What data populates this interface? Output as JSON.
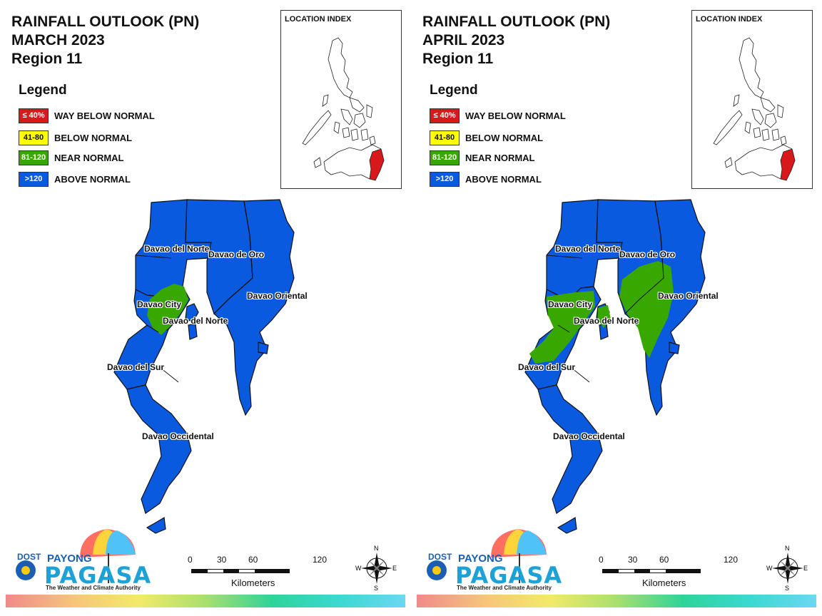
{
  "panels": [
    {
      "title_line1": "RAINFALL OUTLOOK (PN)",
      "title_line2": "MARCH 2023",
      "title_line3": "Region 11",
      "near_normal_zones": [
        "davao-city"
      ],
      "provinces": {
        "davao_del_norte_top": "Davao del Norte",
        "davao_de_oro": "Davao de Oro",
        "davao_oriental": "Davao Oriental",
        "davao_city": "Davao City",
        "davao_del_norte_lower": "Davao del Norte",
        "davao_del_sur": "Davao del Sur",
        "davao_occidental": "Davao Occidental"
      }
    },
    {
      "title_line1": "RAINFALL OUTLOOK (PN)",
      "title_line2": "APRIL 2023",
      "title_line3": "Region 11",
      "near_normal_zones": [
        "west",
        "east"
      ],
      "provinces": {
        "davao_del_norte_top": "Davao del Norte",
        "davao_de_oro": "Davao de Oro",
        "davao_oriental": "Davao Oriental",
        "davao_city": "Davao City",
        "davao_del_norte_lower": "Davao del Norte",
        "davao_del_sur": "Davao del Sur",
        "davao_occidental": "Davao Occidental"
      }
    }
  ],
  "legend": {
    "title": "Legend",
    "items": [
      {
        "swatch": "≤ 40%",
        "label": "WAY BELOW NORMAL",
        "color": "#d7191c",
        "text_color": "#ffffff"
      },
      {
        "swatch": "41-80",
        "label": "BELOW NORMAL",
        "color": "#ffff00",
        "text_color": "#111111"
      },
      {
        "swatch": "81-120",
        "label": "NEAR NORMAL",
        "color": "#38a800",
        "text_color": "#ffffff"
      },
      {
        "swatch": ">120",
        "label": "ABOVE NORMAL",
        "color": "#0a5ae0",
        "text_color": "#ffffff"
      }
    ]
  },
  "inset": {
    "title": "LOCATION INDEX",
    "highlight_color": "#d7191c"
  },
  "scale": {
    "ticks": [
      "0",
      "30",
      "60",
      "120"
    ],
    "unit": "Kilometers"
  },
  "compass": {
    "n": "N",
    "s": "S",
    "e": "E",
    "w": "W"
  },
  "logo": {
    "dost": "DOST",
    "payong": "PAYONG",
    "pagasa": "PAGASA",
    "tagline": "The Weather and Climate Authority"
  },
  "colors": {
    "above_normal": "#0a5ae0",
    "near_normal": "#38a800"
  }
}
